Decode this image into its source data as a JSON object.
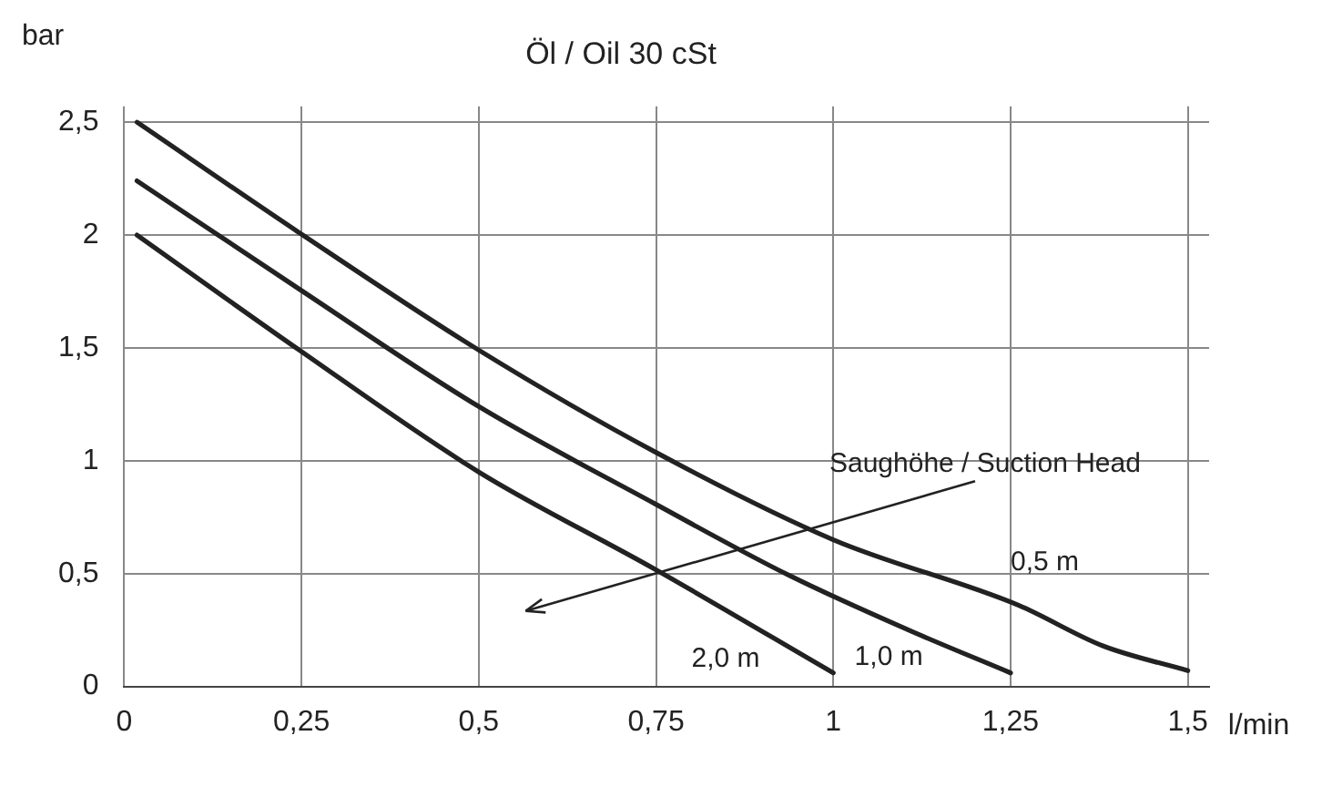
{
  "chart_data": {
    "type": "line",
    "title": "Öl / Oil 30 cSt",
    "xlabel": "l/min",
    "ylabel": "bar",
    "series": [
      {
        "name": "0,5 m",
        "color": "#222222",
        "x": [
          0.018,
          0.247,
          0.5,
          0.748,
          1.0,
          1.261,
          1.38,
          1.5
        ],
        "values": [
          2.5,
          2.01,
          1.49,
          1.04,
          0.65,
          0.36,
          0.18,
          0.07
        ]
      },
      {
        "name": "1,0 m",
        "color": "#222222",
        "x": [
          0.018,
          0.247,
          0.5,
          0.748,
          0.939,
          1.106,
          1.25
        ],
        "values": [
          2.24,
          1.76,
          1.24,
          0.81,
          0.49,
          0.25,
          0.06
        ]
      },
      {
        "name": "2,0 m",
        "color": "#222222",
        "x": [
          0.018,
          0.247,
          0.5,
          0.748,
          1.0
        ],
        "values": [
          2.0,
          1.49,
          0.95,
          0.52,
          0.06
        ]
      }
    ],
    "annotations": [
      "Saughöhe / Suction Head"
    ],
    "xlim": [
      0,
      1.53
    ],
    "xticks": [
      0,
      {
        "value": 0.25,
        "label": "0,25"
      },
      {
        "value": 0.5,
        "label": "0,5"
      },
      {
        "value": 0.75,
        "label": "0,75"
      },
      1,
      {
        "value": 1.25,
        "label": "1,25"
      },
      {
        "value": 1.5,
        "label": "1,5"
      }
    ],
    "ylim": [
      0,
      2.57
    ],
    "yticks": [
      0,
      {
        "value": 0.5,
        "label": "0,5"
      },
      1,
      {
        "value": 1.5,
        "label": "1,5"
      },
      2,
      {
        "value": 2.5,
        "label": "2,5"
      }
    ],
    "grid": true,
    "legend": false,
    "marker": "none",
    "line_style": "solid"
  }
}
